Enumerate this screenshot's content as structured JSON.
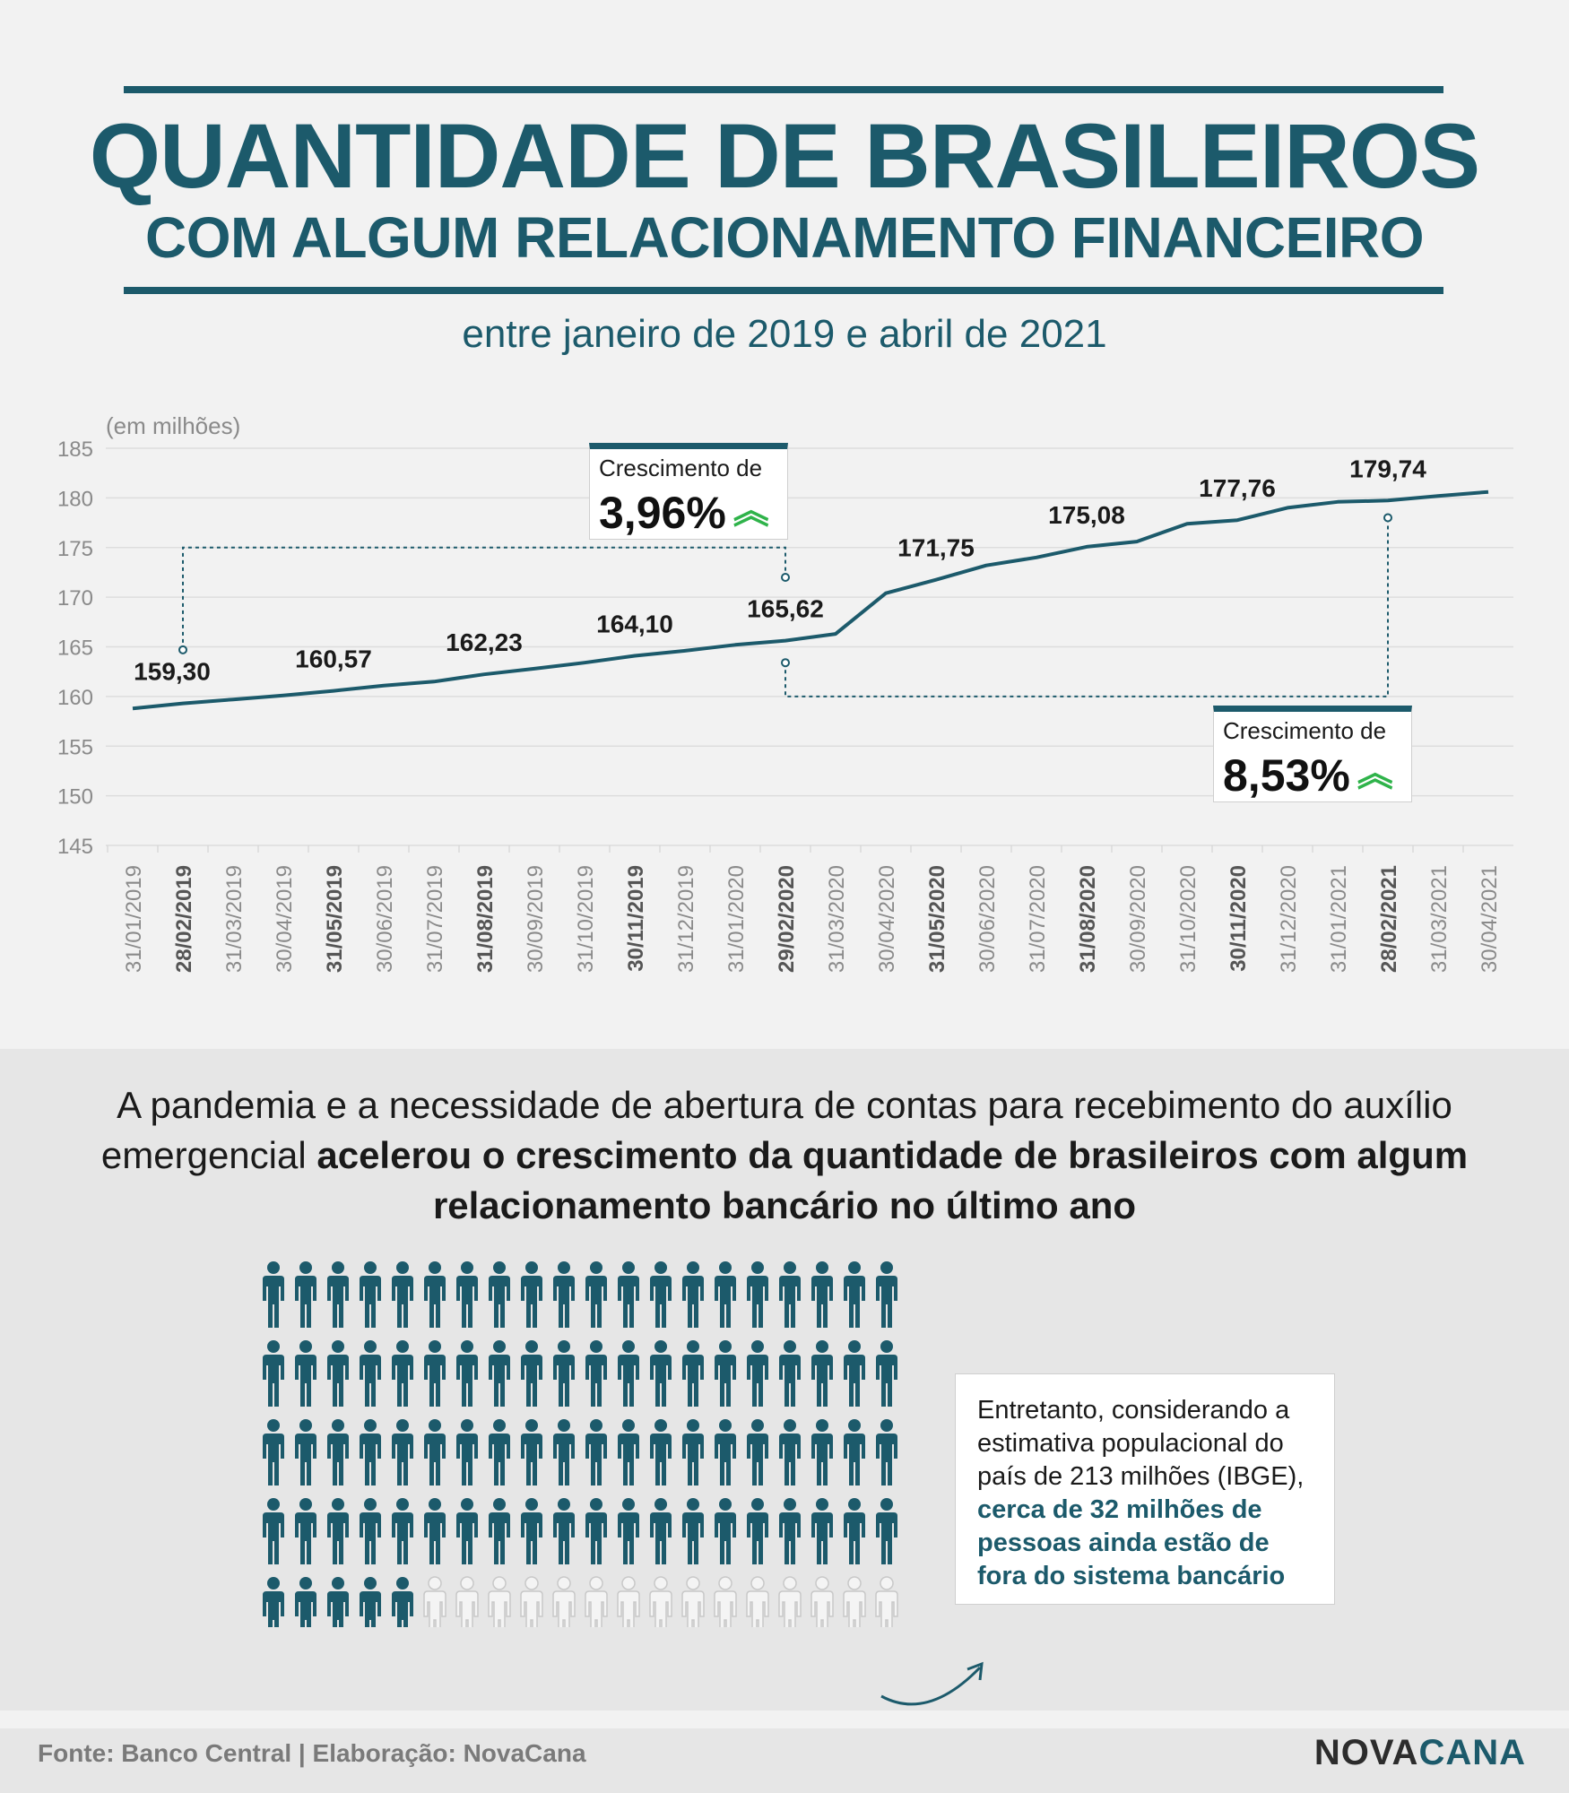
{
  "header": {
    "title_line1": "QUANTIDADE DE BRASILEIROS",
    "title_line2": "COM ALGUM RELACIONAMENTO FINANCEIRO",
    "subtitle": "entre janeiro de 2019 e abril de 2021"
  },
  "chart_data": {
    "type": "line",
    "unit_label": "(em milhões)",
    "ylim": [
      145,
      185
    ],
    "yticks": [
      145,
      150,
      155,
      160,
      165,
      170,
      175,
      180,
      185
    ],
    "grid": true,
    "x": [
      "31/01/2019",
      "28/02/2019",
      "31/03/2019",
      "30/04/2019",
      "31/05/2019",
      "30/06/2019",
      "31/07/2019",
      "31/08/2019",
      "30/09/2019",
      "31/10/2019",
      "30/11/2019",
      "31/12/2019",
      "31/01/2020",
      "29/02/2020",
      "31/03/2020",
      "30/04/2020",
      "31/05/2020",
      "30/06/2020",
      "31/07/2020",
      "31/08/2020",
      "30/09/2020",
      "31/10/2020",
      "30/11/2020",
      "31/12/2020",
      "31/01/2021",
      "28/02/2021",
      "31/03/2021",
      "30/04/2021"
    ],
    "bold_ticks": [
      "28/02/2019",
      "31/05/2019",
      "31/08/2019",
      "30/11/2019",
      "29/02/2020",
      "31/05/2020",
      "31/08/2020",
      "30/11/2020",
      "28/02/2021"
    ],
    "series": [
      {
        "values": [
          158.8,
          159.3,
          159.7,
          160.1,
          160.57,
          161.1,
          161.5,
          162.23,
          162.8,
          163.4,
          164.1,
          164.6,
          165.2,
          165.62,
          166.3,
          170.4,
          171.75,
          173.2,
          174.0,
          175.08,
          175.6,
          177.4,
          177.76,
          179.0,
          179.6,
          179.74,
          180.2,
          180.6
        ]
      }
    ],
    "data_labels": [
      {
        "x": "28/02/2019",
        "text": "159,30"
      },
      {
        "x": "31/05/2019",
        "text": "160,57"
      },
      {
        "x": "31/08/2019",
        "text": "162,23"
      },
      {
        "x": "30/11/2019",
        "text": "164,10"
      },
      {
        "x": "29/02/2020",
        "text": "165,62"
      },
      {
        "x": "31/05/2020",
        "text": "171,75"
      },
      {
        "x": "31/08/2020",
        "text": "175,08"
      },
      {
        "x": "30/11/2020",
        "text": "177,76"
      },
      {
        "x": "28/02/2021",
        "text": "179,74"
      }
    ],
    "annotations": [
      {
        "label": "Crescimento de",
        "value": "3,96%",
        "from": "28/02/2019",
        "to": "29/02/2020"
      },
      {
        "label": "Crescimento de",
        "value": "8,53%",
        "from": "29/02/2020",
        "to": "28/02/2021"
      }
    ]
  },
  "narrative": {
    "part1": "A pandemia e a necessidade de abertura de contas para recebimento do auxílio emergencial ",
    "bold": "acelerou o crescimento da quantidade de brasileiros com algum relacionamento bancário no último ano"
  },
  "pictogram": {
    "columns": 20,
    "rows": 5,
    "filled": 85,
    "filled_color": "#1c5a6b",
    "empty_color": "#c8c8c8",
    "icon": "person-icon"
  },
  "note": {
    "text": "Entretanto, considerando a estimativa populacional do país de 213 milhões (IBGE), ",
    "highlight": "cerca de 32 milhões de pessoas ainda estão de fora do sistema bancário"
  },
  "footer": {
    "source": "Fonte: Banco Central | Elaboração: NovaCana",
    "logo_part1": "NOVA",
    "logo_part2": "CANA"
  },
  "colors": {
    "primary": "#1c5a6b",
    "accent_green": "#2fb34a",
    "grid": "#dddddd",
    "axis_text": "#8a8a8a"
  }
}
